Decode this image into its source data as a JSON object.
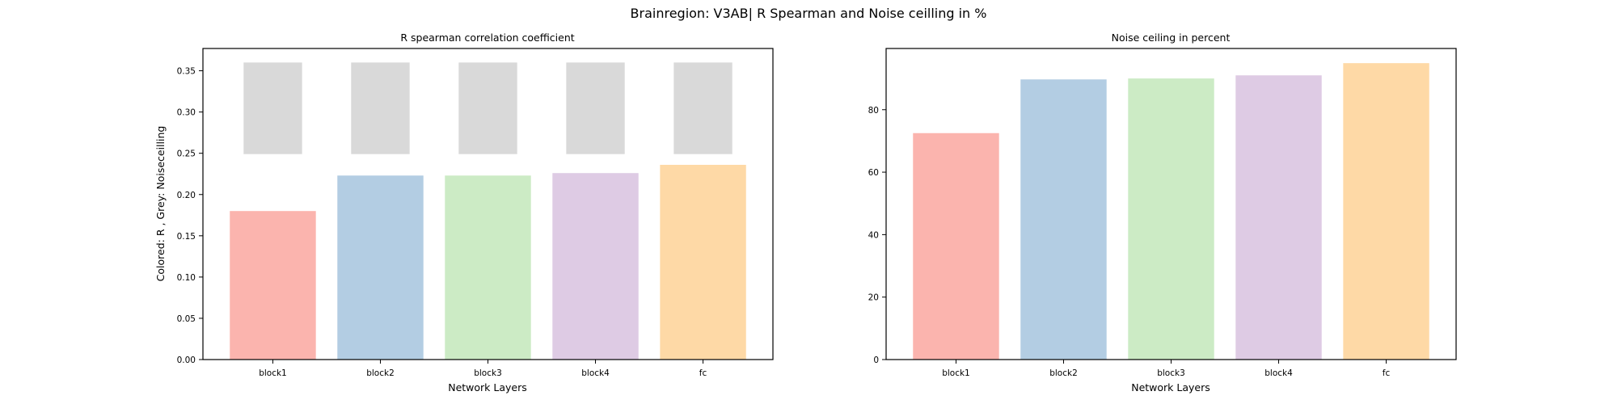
{
  "figure": {
    "title": "Brainregion: V3AB| R Spearman and Noise ceilling in %"
  },
  "chart_data": [
    {
      "type": "bar",
      "title": "R spearman correlation coefficient",
      "xlabel": "Network Layers",
      "ylabel": "Colored: R , Grey: Noiseceilling",
      "categories": [
        "block1",
        "block2",
        "block3",
        "block4",
        "fc"
      ],
      "colors": [
        "#fbb4ae",
        "#b3cde3",
        "#ccebc5",
        "#decbe4",
        "#fed9a6"
      ],
      "series": [
        {
          "values": [
            0.18,
            0.223,
            0.223,
            0.226,
            0.236
          ]
        }
      ],
      "noise_ceiling": {
        "color": "#d9d9d9",
        "lower": [
          0.249,
          0.249,
          0.249,
          0.249,
          0.249
        ],
        "upper": [
          0.36,
          0.36,
          0.36,
          0.36,
          0.36
        ]
      },
      "ylim": [
        0,
        0.377
      ],
      "yticks": [
        0.0,
        0.05,
        0.1,
        0.15,
        0.2,
        0.25,
        0.3,
        0.35
      ],
      "ytick_labels": [
        "0.00",
        "0.05",
        "0.10",
        "0.15",
        "0.20",
        "0.25",
        "0.30",
        "0.35"
      ],
      "grid": false,
      "legend": "none"
    },
    {
      "type": "bar",
      "title": "Noise ceiling in percent",
      "xlabel": "Network Layers",
      "ylabel": "",
      "categories": [
        "block1",
        "block2",
        "block3",
        "block4",
        "fc"
      ],
      "colors": [
        "#fbb4ae",
        "#b3cde3",
        "#ccebc5",
        "#decbe4",
        "#fed9a6"
      ],
      "series": [
        {
          "values": [
            72.5,
            89.7,
            90.0,
            91.0,
            94.9
          ]
        }
      ],
      "ylim": [
        0,
        99.6
      ],
      "yticks": [
        0,
        20,
        40,
        60,
        80
      ],
      "ytick_labels": [
        "0",
        "20",
        "40",
        "60",
        "80"
      ],
      "grid": false,
      "legend": "none"
    }
  ]
}
